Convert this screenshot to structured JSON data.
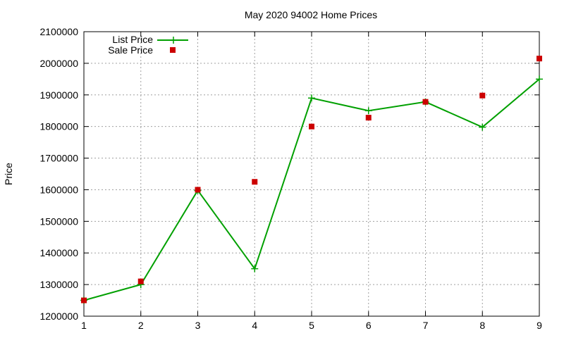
{
  "chart_data": {
    "type": "line",
    "title": "May 2020 94002 Home Prices",
    "xlabel": "",
    "ylabel": "Price",
    "xlim": [
      1,
      9
    ],
    "ylim": [
      1200000,
      2100000
    ],
    "x_ticks": [
      1,
      2,
      3,
      4,
      5,
      6,
      7,
      8,
      9
    ],
    "y_ticks": [
      1200000,
      1300000,
      1400000,
      1500000,
      1600000,
      1700000,
      1800000,
      1900000,
      2000000,
      2100000
    ],
    "grid": true,
    "legend_placement": "top-left",
    "series": [
      {
        "name": "List Price",
        "style": "line-with-plus-markers",
        "color": "#00a000",
        "x": [
          1,
          2,
          3,
          4,
          5,
          6,
          7,
          8,
          9
        ],
        "y": [
          1250000,
          1300000,
          1598000,
          1350000,
          1890000,
          1850000,
          1878000,
          1798000,
          1950000
        ]
      },
      {
        "name": "Sale Price",
        "style": "square-markers",
        "color": "#cc0000",
        "x": [
          1,
          2,
          3,
          4,
          5,
          6,
          7,
          8,
          9
        ],
        "y": [
          1250000,
          1310000,
          1600000,
          1625000,
          1800000,
          1828000,
          1878000,
          1898000,
          2015000
        ]
      }
    ]
  }
}
